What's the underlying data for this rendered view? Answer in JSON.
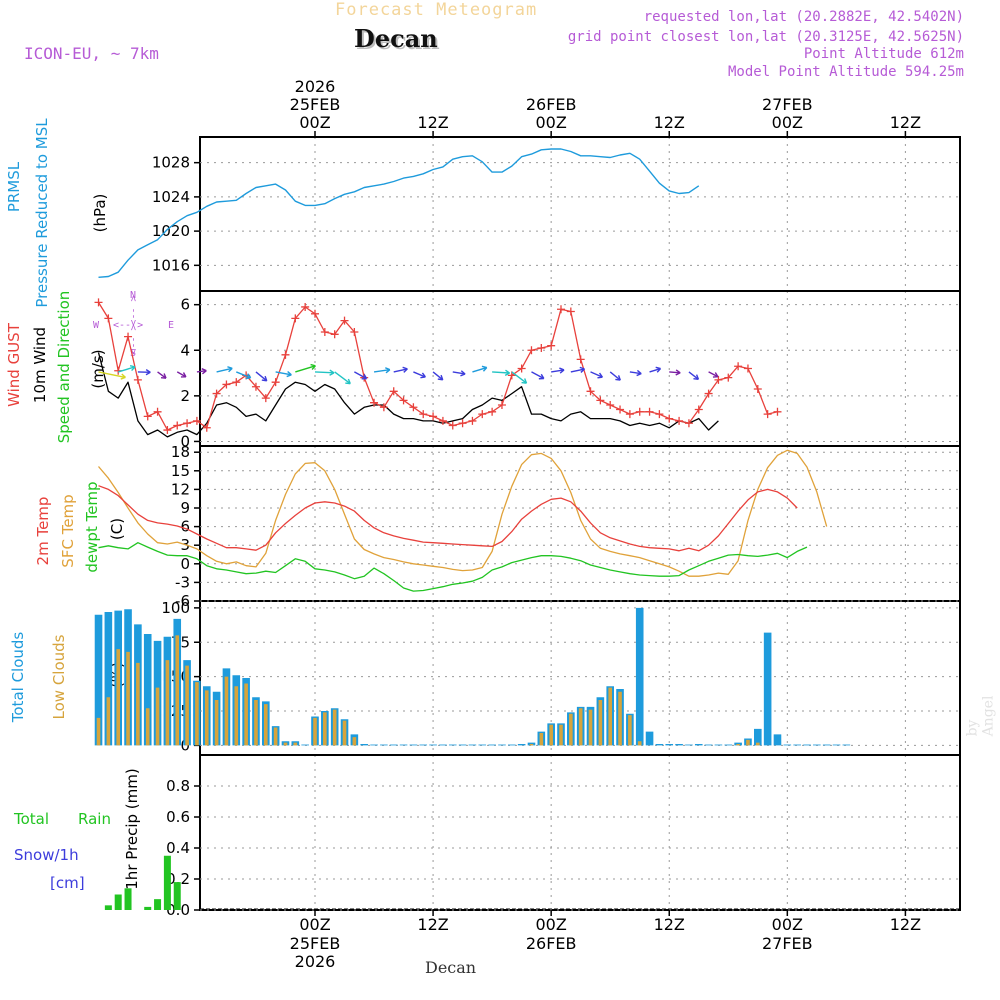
{
  "header": {
    "title": "Forecast Meteogram",
    "location": "Decan",
    "model": "ICON-EU, ~ 7km",
    "requested": "requested lon,lat (20.2882E, 42.5402N)",
    "grid_point": "grid point closest lon,lat (20.3125E, 42.5625N)",
    "point_altitude": "Point Altitude 612m",
    "model_altitude": "Model Point Altitude 594.25m"
  },
  "footer": {
    "location": "Decan",
    "watermark": "by Angel"
  },
  "time_axis": {
    "top_year": "2026",
    "ticks": [
      {
        "hour": 0,
        "label": "00Z",
        "date": "25FEB",
        "year": "2026"
      },
      {
        "hour": 12,
        "label": "12Z",
        "date": "",
        "year": ""
      },
      {
        "hour": 24,
        "label": "00Z",
        "date": "26FEB",
        "year": ""
      },
      {
        "hour": 36,
        "label": "12Z",
        "date": "",
        "year": ""
      },
      {
        "hour": 48,
        "label": "00Z",
        "date": "27FEB",
        "year": ""
      },
      {
        "hour": 60,
        "label": "12Z",
        "date": "",
        "year": ""
      }
    ]
  },
  "panels": {
    "pressure": {
      "labels": [
        "PRMSL",
        "Pressure Reduced to MSL",
        "(hPa)"
      ],
      "colors": {
        "PRMSL": "#1e9bdc",
        "Pressure Reduced to MSL": "#1e9bdc",
        "(hPa)": "#000000"
      }
    },
    "wind": {
      "labels": [
        "Wind GUST",
        "10m Wind",
        "Speed and Direction",
        "(m/s)"
      ],
      "compass": {
        "n": "N",
        "e": "E",
        "w": "W",
        "s": "S",
        "top": "<-- >",
        "mid": "<-- >",
        "bot": "<-- >"
      }
    },
    "temp": {
      "labels": [
        "2m Temp",
        "SFC Temp",
        "dewpt Temp",
        "(C)"
      ]
    },
    "clouds": {
      "labels": [
        "Total Clouds",
        "Low Clouds",
        "(%)"
      ]
    },
    "precip": {
      "labels": [
        "Total",
        "Rain",
        "Snow/1h",
        "[cm]",
        "1hr Precip (mm)"
      ]
    }
  },
  "colors": {
    "pressure": "#1e9bdc",
    "gust": "#e8413c",
    "wind": "#000000",
    "temp2m": "#e8413c",
    "sfc": "#e0a23a",
    "dewpt": "#22c422",
    "total_clouds": "#1e9bdc",
    "low_clouds": "#d6a43c",
    "rain": "#22c422",
    "snow": "#3c3cdc",
    "purple": "#b65bd6",
    "grid": "#999999"
  },
  "chart_data": [
    {
      "type": "line",
      "title": "PRMSL Pressure Reduced to MSL",
      "ylabel": "(hPa)",
      "ylim": [
        1013,
        1031
      ],
      "yticks": [
        1016,
        1020,
        1024,
        1028
      ],
      "x_hours_start": -22,
      "x_hours_step": 1,
      "series": [
        {
          "name": "PRMSL",
          "values": [
            1014.6,
            1014.7,
            1015.2,
            1016.6,
            1017.8,
            1018.4,
            1019.0,
            1020.2,
            1021.1,
            1021.8,
            1022.2,
            1022.9,
            1023.4,
            1023.5,
            1023.6,
            1024.4,
            1025.1,
            1025.3,
            1025.5,
            1024.8,
            1023.5,
            1023.0,
            1023.0,
            1023.2,
            1023.8,
            1024.3,
            1024.6,
            1025.1,
            1025.3,
            1025.5,
            1025.8,
            1026.2,
            1026.4,
            1026.7,
            1027.2,
            1027.5,
            1028.4,
            1028.7,
            1028.8,
            1028.1,
            1026.9,
            1026.9,
            1027.6,
            1028.7,
            1029.0,
            1029.5,
            1029.6,
            1029.6,
            1029.3,
            1028.8,
            1028.8,
            1028.7,
            1028.6,
            1028.9,
            1029.1,
            1028.4,
            1027.0,
            1025.6,
            1024.7,
            1024.4,
            1024.5,
            1025.3
          ]
        }
      ]
    },
    {
      "type": "line",
      "title": "Wind GUST / 10m Wind",
      "ylabel": "(m/s)",
      "ylim": [
        -0.2,
        6.6
      ],
      "yticks": [
        0,
        2,
        4,
        6
      ],
      "x_hours_start": -22,
      "x_hours_step": 1,
      "series": [
        {
          "name": "Wind GUST",
          "values": [
            6.1,
            5.4,
            3.1,
            4.6,
            2.7,
            1.1,
            1.3,
            0.5,
            0.7,
            0.8,
            0.9,
            0.6,
            2.1,
            2.5,
            2.6,
            2.9,
            2.4,
            1.9,
            2.6,
            3.8,
            5.4,
            5.9,
            5.6,
            4.8,
            4.7,
            5.3,
            4.8,
            2.8,
            1.7,
            1.5,
            2.2,
            1.8,
            1.5,
            1.2,
            1.1,
            0.9,
            0.7,
            0.8,
            0.9,
            1.2,
            1.3,
            1.6,
            2.9,
            3.2,
            4.0,
            4.1,
            4.2,
            5.8,
            5.7,
            3.6,
            2.2,
            1.8,
            1.6,
            1.4,
            1.2,
            1.3,
            1.3,
            1.2,
            1.0,
            0.9,
            0.8,
            1.4,
            2.1,
            2.7,
            2.8,
            3.3,
            3.2,
            2.3,
            1.2,
            1.3
          ]
        },
        {
          "name": "10m Wind",
          "values": [
            3.9,
            2.2,
            1.9,
            2.6,
            0.9,
            0.3,
            0.5,
            0.2,
            0.4,
            0.5,
            0.3,
            0.8,
            1.6,
            1.7,
            1.5,
            1.1,
            1.2,
            0.9,
            1.6,
            2.3,
            2.6,
            2.5,
            2.2,
            2.5,
            2.3,
            1.7,
            1.2,
            1.5,
            1.6,
            1.6,
            1.2,
            1.0,
            1.0,
            0.9,
            0.9,
            0.8,
            0.9,
            1.0,
            1.4,
            1.6,
            1.9,
            1.8,
            2.1,
            2.4,
            1.2,
            1.2,
            1.0,
            0.9,
            1.2,
            1.3,
            1.0,
            1.0,
            1.0,
            0.9,
            0.7,
            0.8,
            0.7,
            0.8,
            0.6,
            0.9,
            0.8,
            1.0,
            0.5,
            0.9
          ]
        }
      ]
    },
    {
      "type": "line",
      "title": "2m Temp / SFC Temp / dewpt Temp",
      "ylabel": "(C)",
      "ylim": [
        -6,
        19
      ],
      "yticks": [
        -6,
        -3,
        0,
        3,
        6,
        9,
        12,
        15,
        18
      ],
      "x_hours_start": -22,
      "x_hours_step": 1,
      "series": [
        {
          "name": "2m Temp",
          "values": [
            12.6,
            12.0,
            11.0,
            9.5,
            8.0,
            7.0,
            6.6,
            6.4,
            6.1,
            5.6,
            4.8,
            4.0,
            3.3,
            2.6,
            2.6,
            2.4,
            2.2,
            3.0,
            5.0,
            6.5,
            7.8,
            9.0,
            9.8,
            10.0,
            9.8,
            9.3,
            8.5,
            7.0,
            5.8,
            5.0,
            4.5,
            4.1,
            3.8,
            3.5,
            3.4,
            3.3,
            3.2,
            3.1,
            3.0,
            2.9,
            2.8,
            3.6,
            5.2,
            7.2,
            8.5,
            9.6,
            10.4,
            10.6,
            10.0,
            8.5,
            6.6,
            5.0,
            4.2,
            3.7,
            3.2,
            2.8,
            2.6,
            2.5,
            2.4,
            2.1,
            2.5,
            2.1,
            3.0,
            4.5,
            6.5,
            8.5,
            10.3,
            11.6,
            12.0,
            11.6,
            10.6,
            9.0
          ]
        },
        {
          "name": "SFC Temp",
          "values": [
            15.7,
            13.8,
            11.5,
            9.0,
            6.6,
            4.8,
            3.4,
            3.2,
            3.5,
            3.0,
            2.4,
            1.3,
            0.4,
            0.0,
            0.3,
            -0.3,
            -0.5,
            1.7,
            7.0,
            11.2,
            14.5,
            16.2,
            16.3,
            15.0,
            12.0,
            8.0,
            4.0,
            2.3,
            1.6,
            1.0,
            0.7,
            0.3,
            0.0,
            -0.2,
            -0.4,
            -0.6,
            -0.9,
            -1.1,
            -1.0,
            -0.6,
            2.0,
            8.0,
            12.5,
            16.0,
            17.6,
            17.8,
            17.0,
            15.0,
            11.5,
            7.0,
            4.0,
            2.5,
            2.0,
            1.6,
            1.3,
            1.0,
            0.5,
            0.0,
            -0.5,
            -1.2,
            -2.0,
            -2.0,
            -1.8,
            -1.5,
            -1.7,
            0.5,
            7.0,
            12.0,
            15.5,
            17.5,
            18.3,
            17.8,
            15.6,
            11.6,
            6.0
          ]
        },
        {
          "name": "dewpt Temp",
          "values": [
            2.6,
            2.9,
            2.6,
            2.4,
            3.4,
            2.7,
            2.0,
            1.4,
            1.3,
            1.3,
            0.8,
            -0.3,
            -0.8,
            -1.0,
            -1.3,
            -1.6,
            -1.5,
            -1.2,
            -1.4,
            -0.3,
            0.8,
            0.4,
            -0.8,
            -1.0,
            -1.3,
            -1.8,
            -2.4,
            -2.0,
            -0.7,
            -1.6,
            -2.7,
            -3.9,
            -4.4,
            -4.3,
            -4.0,
            -3.7,
            -3.3,
            -3.1,
            -2.8,
            -2.2,
            -1.0,
            -0.5,
            0.2,
            0.6,
            1.0,
            1.3,
            1.3,
            1.2,
            0.9,
            0.5,
            -0.2,
            -0.6,
            -1.0,
            -1.3,
            -1.6,
            -1.8,
            -1.9,
            -2.0,
            -2.0,
            -1.9,
            -1.0,
            -0.3,
            0.4,
            0.9,
            1.4,
            1.5,
            1.3,
            1.2,
            1.4,
            1.7,
            1.0,
            2.0,
            2.7
          ]
        }
      ]
    },
    {
      "type": "bar",
      "title": "Total Clouds / Low Clouds",
      "ylabel": "(%)",
      "ylim": [
        -7,
        105
      ],
      "yticks": [
        0,
        25,
        50,
        75,
        100
      ],
      "x_hours_start": -22,
      "x_hours_step": 1,
      "series": [
        {
          "name": "Total Clouds",
          "values": [
            95,
            97,
            98,
            99,
            88,
            81,
            76,
            79,
            92,
            62,
            47,
            43,
            39,
            56,
            51,
            49,
            35,
            32,
            14,
            3,
            3,
            0,
            21,
            25,
            27,
            19,
            8,
            1,
            0,
            0,
            0,
            0,
            0,
            0,
            0,
            0,
            0,
            0,
            0,
            0,
            0,
            0,
            0,
            1,
            2,
            10,
            16,
            16,
            24,
            28,
            28,
            35,
            43,
            41,
            23,
            100,
            10,
            1,
            1,
            1,
            0,
            1,
            0,
            0,
            0,
            2,
            5,
            12,
            82,
            8,
            0,
            0,
            0,
            0,
            0,
            0,
            0
          ]
        },
        {
          "name": "Low Clouds",
          "values": [
            20,
            35,
            70,
            68,
            60,
            27,
            42,
            62,
            80,
            58,
            46,
            40,
            33,
            50,
            43,
            45,
            33,
            30,
            13,
            2,
            2,
            0,
            20,
            24,
            26,
            18,
            6,
            0,
            0,
            0,
            0,
            0,
            0,
            0,
            0,
            0,
            0,
            0,
            0,
            0,
            0,
            0,
            0,
            0,
            1,
            9,
            15,
            15,
            23,
            27,
            26,
            33,
            42,
            39,
            22,
            3,
            0,
            0,
            0,
            0,
            0,
            0,
            0,
            0,
            0,
            1,
            4,
            2,
            0,
            0,
            0,
            0,
            0,
            0,
            0,
            0,
            0
          ]
        }
      ]
    },
    {
      "type": "bar",
      "title": "1hr Precip (mm)",
      "ylabel": "1hr Precip (mm)",
      "ylim": [
        0,
        1.0
      ],
      "yticks": [
        0,
        0.2,
        0.4,
        0.6,
        0.8
      ],
      "x_hours_start": -22,
      "x_hours_step": 1,
      "series": [
        {
          "name": "Rain",
          "values": [
            0,
            0.03,
            0.1,
            0.14,
            0,
            0.02,
            0.07,
            0.35,
            0.18
          ]
        },
        {
          "name": "Snow/1h",
          "values": [
            0,
            0,
            0,
            0,
            0,
            0,
            0,
            0,
            0
          ]
        }
      ]
    }
  ]
}
